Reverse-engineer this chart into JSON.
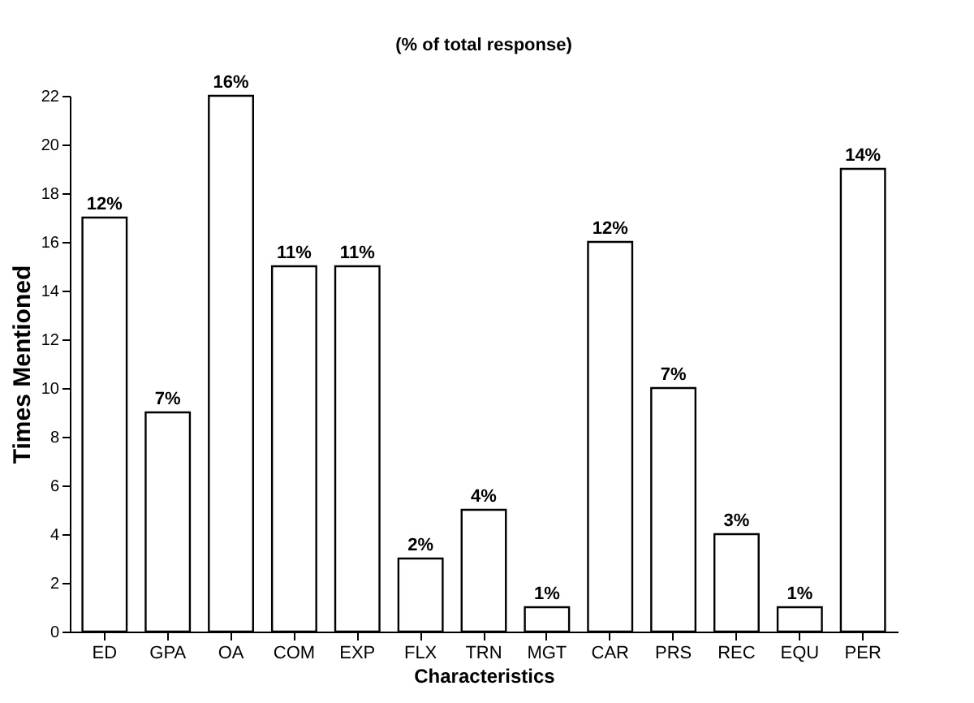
{
  "chart_data": {
    "type": "bar",
    "xlabel": "Characteristics",
    "ylabel": "Times Mentioned",
    "annotations": [
      "(% of total response)",
      {
        "text": "12%",
        "x": "ED",
        "y": 17
      },
      {
        "text": "7%",
        "x": "GPA",
        "y": 9
      },
      {
        "text": "16%",
        "x": "OA",
        "y": 22
      },
      {
        "text": "11%",
        "x": "COM",
        "y": 15
      },
      {
        "text": "11%",
        "x": "EXP",
        "y": 15
      },
      {
        "text": "2%",
        "x": "FLX",
        "y": 3
      },
      {
        "text": "4%",
        "x": "TRN",
        "y": 5
      },
      {
        "text": "1%",
        "x": "MGT",
        "y": 1
      },
      {
        "text": "12%",
        "x": "CAR",
        "y": 16
      },
      {
        "text": "7%",
        "x": "PRS",
        "y": 10
      },
      {
        "text": "3%",
        "x": "REC",
        "y": 4
      },
      {
        "text": "1%",
        "x": "EQU",
        "y": 1
      },
      {
        "text": "14%",
        "x": "PER",
        "y": 19
      }
    ],
    "categories": [
      "ED",
      "GPA",
      "OA",
      "COM",
      "EXP",
      "FLX",
      "TRN",
      "MGT",
      "CAR",
      "PRS",
      "REC",
      "EQU",
      "PER"
    ],
    "values": [
      17,
      9,
      22,
      15,
      15,
      3,
      5,
      1,
      16,
      10,
      4,
      1,
      19
    ],
    "color": "#ffffff",
    "ylim": [
      0,
      22
    ],
    "yticks": [
      0,
      2,
      4,
      6,
      8,
      10,
      12,
      14,
      16,
      18,
      20,
      22
    ],
    "grid": false
  }
}
